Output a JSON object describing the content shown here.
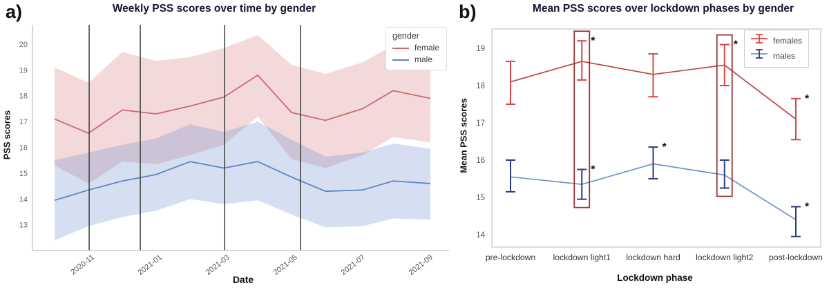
{
  "panels": [
    {
      "label": "a)",
      "title": "Weekly PSS scores over time by gender",
      "ylabel": "PSS scores",
      "xlabel": "Date",
      "legend_title": "gender"
    },
    {
      "label": "b)",
      "title": "Mean PSS scores over lockdown phases by gender",
      "ylabel": "Mean PSS scores",
      "xlabel": "Lockdown phase"
    }
  ],
  "chart_data": [
    {
      "type": "line",
      "title": "Weekly PSS scores over time by gender",
      "xlabel": "Date",
      "ylabel": "PSS scores",
      "x_unit": "months, 1 = 2020-11",
      "x_ticks": [
        {
          "m": 1,
          "label": "2020-11"
        },
        {
          "m": 3,
          "label": "2021-01"
        },
        {
          "m": 5,
          "label": "2021-03"
        },
        {
          "m": 7,
          "label": "2021-05"
        },
        {
          "m": 9,
          "label": "2021-07"
        },
        {
          "m": 11,
          "label": "2021-09"
        }
      ],
      "y_ticks": [
        13,
        14,
        15,
        16,
        17,
        18,
        19,
        20
      ],
      "ylim": [
        12.0,
        20.75
      ],
      "xlim": [
        -0.75,
        11.55
      ],
      "event_lines_x": [
        0.92,
        2.43,
        4.92,
        7.16
      ],
      "event_line_color": "#3c3c3c",
      "spine_color": "#c9c9c9",
      "tick_color": "#666666",
      "x": [
        -0.1,
        0.9,
        1.9,
        2.9,
        3.9,
        4.9,
        5.9,
        6.9,
        7.9,
        9.0,
        9.9,
        11.0
      ],
      "series": [
        {
          "name": "female",
          "color": "#c96b6c",
          "band_color": "rgba(217,119,122,0.28)",
          "values": [
            17.1,
            16.55,
            17.45,
            17.3,
            17.6,
            17.95,
            18.8,
            17.35,
            17.05,
            17.5,
            18.2,
            17.9
          ],
          "ci_high": [
            19.1,
            18.5,
            19.7,
            19.35,
            19.5,
            19.85,
            20.35,
            19.2,
            18.85,
            19.3,
            19.95,
            19.55
          ],
          "ci_low": [
            15.3,
            14.6,
            15.45,
            15.35,
            15.7,
            16.1,
            17.2,
            15.55,
            15.2,
            15.7,
            16.4,
            16.2
          ]
        },
        {
          "name": "male",
          "color": "#5e84c3",
          "band_color": "rgba(105,140,205,0.28)",
          "values": [
            13.95,
            14.35,
            14.7,
            14.95,
            15.45,
            15.2,
            15.45,
            14.85,
            14.3,
            14.35,
            14.7,
            14.6
          ],
          "ci_high": [
            15.5,
            15.8,
            16.1,
            16.35,
            16.9,
            16.6,
            17.0,
            16.3,
            15.65,
            15.8,
            16.15,
            15.95
          ],
          "ci_low": [
            12.4,
            12.95,
            13.3,
            13.55,
            14.0,
            13.8,
            13.95,
            13.4,
            12.9,
            12.95,
            13.25,
            13.2
          ]
        }
      ]
    },
    {
      "type": "line+errorbar",
      "title": "Mean PSS scores over lockdown phases by gender",
      "xlabel": "Lockdown phase",
      "ylabel": "Mean PSS scores",
      "categories": [
        "pre-lockdown",
        "lockdown light1",
        "lockdown hard",
        "lockdown light2",
        "post-lockdown"
      ],
      "y_ticks": [
        14,
        15,
        16,
        17,
        18,
        19
      ],
      "ylim": [
        13.6,
        19.55
      ],
      "frame_color": "#d2d2d2",
      "tick_color": "#555555",
      "category_label_color": "#333333",
      "sig_marker": "*",
      "sig_marker_color": "#111111",
      "highlight_boxes": {
        "categories": [
          "lockdown light1",
          "lockdown light2"
        ],
        "indices": [
          1,
          3
        ],
        "color": "#943634"
      },
      "series": [
        {
          "name": "females",
          "line_color": "#bf4343",
          "err_color": "#d84545",
          "mean": [
            18.1,
            18.65,
            18.3,
            18.55,
            17.1
          ],
          "ci_low": [
            17.5,
            18.15,
            17.7,
            18.0,
            16.55
          ],
          "ci_high": [
            18.65,
            19.2,
            18.85,
            19.1,
            17.65
          ],
          "sig": [
            false,
            true,
            false,
            true,
            true
          ]
        },
        {
          "name": "males",
          "line_color": "#6e93ca",
          "err_color": "#2c3a85",
          "mean": [
            15.55,
            15.35,
            15.9,
            15.6,
            14.4
          ],
          "ci_low": [
            15.15,
            14.95,
            15.5,
            15.25,
            13.95
          ],
          "ci_high": [
            16.0,
            15.75,
            16.35,
            16.0,
            14.75
          ],
          "sig": [
            false,
            true,
            true,
            false,
            true
          ]
        }
      ]
    }
  ]
}
